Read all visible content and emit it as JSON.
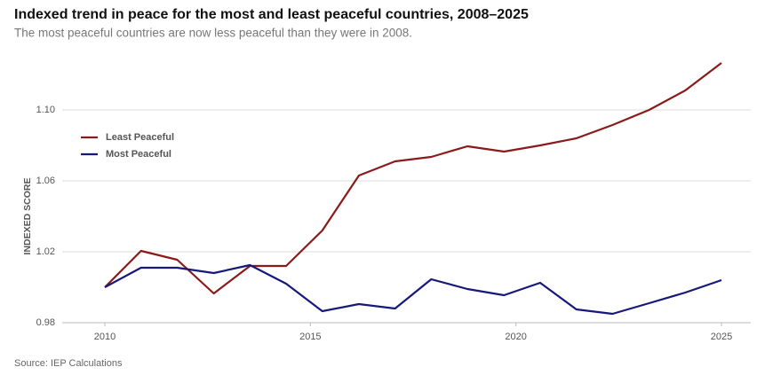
{
  "chart_data": {
    "type": "line",
    "title": "Indexed trend in peace for the most and least peaceful countries, 2008–2025",
    "subtitle": "The most peaceful countries are now less peaceful than they were in 2008.",
    "y_label": "INDEXED SCORE",
    "source": "Source: IEP Calculations",
    "x": [
      2010,
      2010.88,
      2011.76,
      2012.65,
      2013.53,
      2014.41,
      2015.29,
      2016.18,
      2017.06,
      2017.94,
      2018.82,
      2019.71,
      2020.59,
      2021.47,
      2022.35,
      2023.24,
      2024.12,
      2025
    ],
    "series": [
      {
        "name": "Least Peaceful",
        "color": "#8b1a1a",
        "values": [
          1.0,
          1.0205,
          1.0155,
          0.9965,
          1.012,
          1.012,
          1.032,
          1.063,
          1.071,
          1.0735,
          1.0795,
          1.0765,
          1.08,
          1.084,
          1.0915,
          1.1,
          1.111,
          1.1265
        ]
      },
      {
        "name": "Most Peaceful",
        "color": "#16197a",
        "values": [
          1.0,
          1.011,
          1.011,
          1.008,
          1.0125,
          1.002,
          0.9865,
          0.9905,
          0.988,
          1.0045,
          0.999,
          0.9955,
          1.0025,
          0.9875,
          0.985,
          0.991,
          0.997,
          1.004
        ]
      }
    ],
    "xlim": [
      2010,
      2025
    ],
    "xticks": [
      2010,
      2015,
      2020,
      2025
    ],
    "ylim": [
      0.98,
      1.135
    ],
    "yticks": [
      0.98,
      1.02,
      1.06,
      {
        "value": 1.1,
        "label": "1.10"
      }
    ],
    "grid": true,
    "legend": "top-left"
  }
}
